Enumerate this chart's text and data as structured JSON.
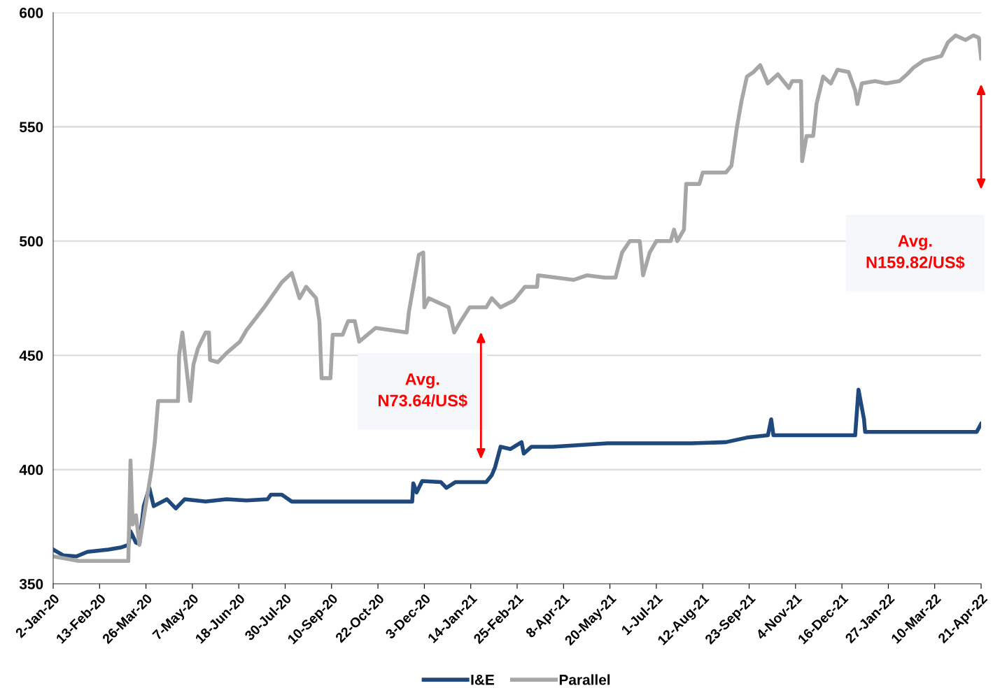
{
  "chart_data": {
    "type": "line",
    "xlim": [
      "2020-01-02",
      "2022-04-21"
    ],
    "ylim": [
      350,
      600
    ],
    "yticks": [
      350,
      400,
      450,
      500,
      550,
      600
    ],
    "xticks": [
      {
        "value": "2020-01-02",
        "label": "2-Jan-20"
      },
      {
        "value": "2020-02-13",
        "label": "13-Feb-20"
      },
      {
        "value": "2020-03-26",
        "label": "26-Mar-20"
      },
      {
        "value": "2020-05-07",
        "label": "7-May-20"
      },
      {
        "value": "2020-06-18",
        "label": "18-Jun-20"
      },
      {
        "value": "2020-07-30",
        "label": "30-Jul-20"
      },
      {
        "value": "2020-09-10",
        "label": "10-Sep-20"
      },
      {
        "value": "2020-10-22",
        "label": "22-Oct-20"
      },
      {
        "value": "2020-12-03",
        "label": "3-Dec-20"
      },
      {
        "value": "2021-01-14",
        "label": "14-Jan-21"
      },
      {
        "value": "2021-02-25",
        "label": "25-Feb-21"
      },
      {
        "value": "2021-04-08",
        "label": "8-Apr-21"
      },
      {
        "value": "2021-05-20",
        "label": "20-May-21"
      },
      {
        "value": "2021-07-01",
        "label": "1-Jul-21"
      },
      {
        "value": "2021-08-12",
        "label": "12-Aug-21"
      },
      {
        "value": "2021-09-23",
        "label": "23-Sep-21"
      },
      {
        "value": "2021-11-04",
        "label": "4-Nov-21"
      },
      {
        "value": "2021-12-16",
        "label": "16-Dec-21"
      },
      {
        "value": "2022-01-27",
        "label": "27-Jan-22"
      },
      {
        "value": "2022-03-10",
        "label": "10-Mar-22"
      },
      {
        "value": "2022-04-21",
        "label": "21-Apr-22"
      }
    ],
    "grid": "y",
    "legend": "bottom",
    "marker": "none",
    "line_style": "solid",
    "annotations": [
      "Avg.\nN73.64/US$",
      "Avg.\nN159.82/US$"
    ],
    "series": [
      {
        "name": "I&E",
        "color": "#1f497d",
        "x": [
          "2020-01-02",
          "2020-01-11",
          "2020-01-23",
          "2020-02-02",
          "2020-02-21",
          "2020-03-04",
          "2020-03-10",
          "2020-03-12",
          "2020-03-17",
          "2020-03-20",
          "2020-03-24",
          "2020-03-29",
          "2020-04-02",
          "2020-04-14",
          "2020-04-22",
          "2020-04-30",
          "2020-05-19",
          "2020-06-07",
          "2020-06-25",
          "2020-07-14",
          "2020-07-17",
          "2020-07-27",
          "2020-08-05",
          "2020-09-21",
          "2020-11-22",
          "2020-11-23",
          "2020-11-26",
          "2020-12-01",
          "2020-12-18",
          "2020-12-23",
          "2020-12-31",
          "2021-01-28",
          "2021-02-02",
          "2021-02-05",
          "2021-02-10",
          "2021-02-19",
          "2021-03-01",
          "2021-03-03",
          "2021-03-10",
          "2021-03-29",
          "2021-05-18",
          "2021-07-01",
          "2021-08-02",
          "2021-09-02",
          "2021-09-21",
          "2021-10-10",
          "2021-10-13",
          "2021-10-15",
          "2021-11-10",
          "2021-12-28",
          "2021-12-31",
          "2022-01-05",
          "2022-01-06",
          "2022-02-06",
          "2022-03-29",
          "2022-04-17",
          "2022-04-21"
        ],
        "values": [
          365,
          362.5,
          362,
          364,
          365,
          366,
          367,
          373,
          368,
          367.5,
          384,
          392,
          384,
          387,
          383,
          387,
          386,
          387,
          386.5,
          387,
          389,
          389,
          386,
          386,
          386,
          394,
          390,
          395,
          394.5,
          392,
          394.5,
          394.5,
          397.5,
          401,
          410,
          409,
          412,
          407,
          410,
          410,
          411.5,
          411.5,
          411.5,
          412,
          414,
          415,
          422,
          415,
          415,
          415,
          435,
          422,
          416.5,
          416.5,
          416.5,
          416.5,
          420
        ]
      },
      {
        "name": "Parallel",
        "color": "#a6a6a6",
        "x": [
          "2020-01-02",
          "2020-01-25",
          "2020-03-10",
          "2020-03-12",
          "2020-03-14",
          "2020-03-17",
          "2020-03-20",
          "2020-03-26",
          "2020-03-31",
          "2020-04-03",
          "2020-04-06",
          "2020-04-24",
          "2020-04-25",
          "2020-04-28",
          "2020-05-05",
          "2020-05-08",
          "2020-05-12",
          "2020-05-19",
          "2020-05-22",
          "2020-05-23",
          "2020-05-30",
          "2020-06-07",
          "2020-06-19",
          "2020-06-25",
          "2020-07-11",
          "2020-07-27",
          "2020-08-05",
          "2020-08-12",
          "2020-08-18",
          "2020-08-27",
          "2020-08-30",
          "2020-09-01",
          "2020-09-09",
          "2020-09-11",
          "2020-09-20",
          "2020-09-25",
          "2020-10-01",
          "2020-10-05",
          "2020-10-20",
          "2020-11-17",
          "2020-11-19",
          "2020-11-23",
          "2020-11-28",
          "2020-12-02",
          "2020-12-03",
          "2020-12-07",
          "2020-12-25",
          "2020-12-30",
          "2021-01-05",
          "2021-01-13",
          "2021-01-28",
          "2021-02-02",
          "2021-02-10",
          "2021-02-22",
          "2021-03-04",
          "2021-03-15",
          "2021-03-16",
          "2021-04-17",
          "2021-04-29",
          "2021-05-15",
          "2021-05-25",
          "2021-05-31",
          "2021-06-07",
          "2021-06-16",
          "2021-06-19",
          "2021-06-25",
          "2021-07-01",
          "2021-07-14",
          "2021-07-17",
          "2021-07-20",
          "2021-07-26",
          "2021-07-28",
          "2021-08-09",
          "2021-08-12",
          "2021-09-02",
          "2021-09-07",
          "2021-09-12",
          "2021-09-16",
          "2021-09-21",
          "2021-09-27",
          "2021-10-03",
          "2021-10-10",
          "2021-10-19",
          "2021-10-29",
          "2021-11-01",
          "2021-11-09",
          "2021-11-10",
          "2021-11-14",
          "2021-11-20",
          "2021-11-23",
          "2021-11-29",
          "2021-12-06",
          "2021-12-12",
          "2021-12-22",
          "2021-12-28",
          "2021-12-30",
          "2022-01-03",
          "2022-01-15",
          "2022-01-25",
          "2022-02-06",
          "2022-02-13",
          "2022-02-19",
          "2022-02-28",
          "2022-03-16",
          "2022-03-22",
          "2022-03-29",
          "2022-04-07",
          "2022-04-14",
          "2022-04-19",
          "2022-04-21"
        ],
        "values": [
          362,
          360,
          360,
          404,
          376,
          380,
          367,
          385,
          400,
          412,
          430,
          430,
          450,
          460,
          430,
          446,
          453,
          460,
          460,
          448,
          447,
          451,
          456,
          461,
          471,
          482,
          486,
          475,
          480,
          475,
          465,
          440,
          440,
          459,
          459,
          465,
          465,
          456,
          462,
          460,
          469,
          480,
          494,
          495,
          471,
          475,
          471,
          460,
          465,
          471,
          471,
          475,
          471,
          474,
          480,
          480,
          485,
          483,
          485,
          484,
          484,
          495,
          500,
          500,
          485,
          495,
          500,
          500,
          505,
          500,
          505,
          525,
          525,
          530,
          530,
          533,
          550,
          561,
          572,
          574,
          577,
          569,
          573,
          567,
          570,
          570,
          535,
          546,
          546,
          560,
          572,
          569,
          575,
          574,
          566,
          560,
          569,
          570,
          569,
          570,
          573,
          576,
          579,
          581,
          587,
          590,
          588,
          590,
          589,
          580
        ]
      }
    ]
  }
}
